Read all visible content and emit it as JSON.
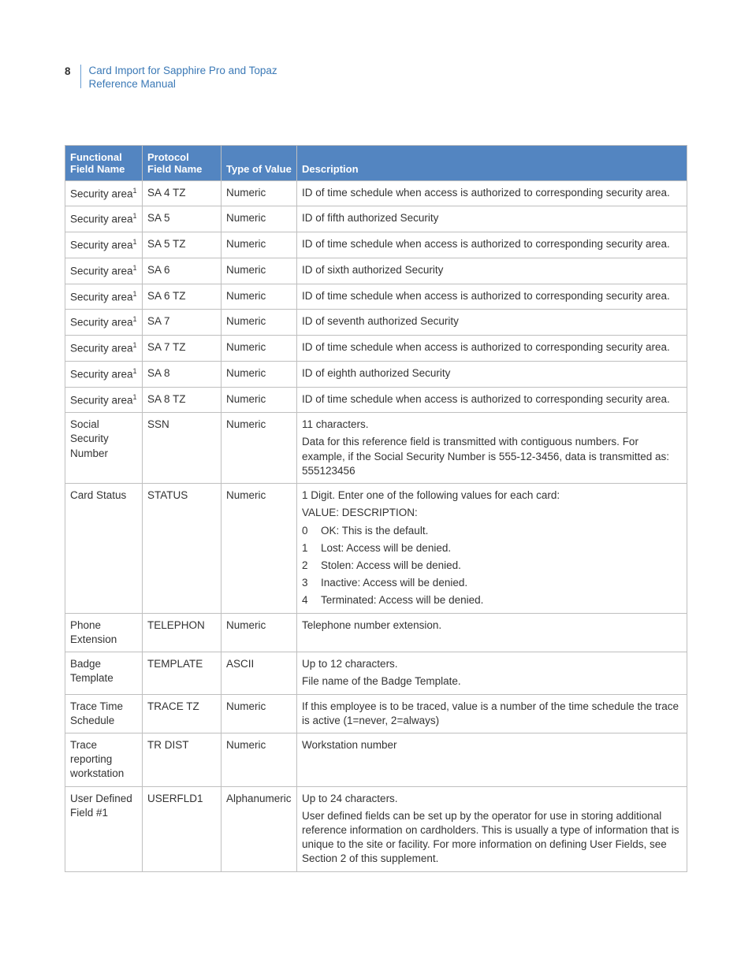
{
  "page": {
    "number": "8",
    "title": "Card Import for Sapphire Pro and Topaz",
    "subtitle": "Reference Manual"
  },
  "colors": {
    "header_bg": "#5385c1",
    "header_text": "#ffffff",
    "border": "#bfbfbf",
    "link_text": "#3b79b6",
    "body_text": "#333333"
  },
  "table": {
    "columns": [
      {
        "label_line1": "Functional",
        "label_line2": "Field Name"
      },
      {
        "label_line1": "Protocol",
        "label_line2": "Field Name"
      },
      {
        "label_line1": "",
        "label_line2": "Type of Value"
      },
      {
        "label_line1": "",
        "label_line2": "Description"
      }
    ],
    "rows": [
      {
        "functional": "Security area",
        "functional_sup": "1",
        "protocol": "SA 4 TZ",
        "type": "Numeric",
        "description": [
          {
            "kind": "p",
            "text": "ID of time schedule when access is authorized to corresponding security area."
          }
        ]
      },
      {
        "functional": "Security area",
        "functional_sup": "1",
        "protocol": "SA 5",
        "type": "Numeric",
        "description": [
          {
            "kind": "p",
            "text": "ID of fifth authorized Security"
          }
        ]
      },
      {
        "functional": "Security area",
        "functional_sup": "1",
        "protocol": "SA 5 TZ",
        "type": "Numeric",
        "description": [
          {
            "kind": "p",
            "text": "ID of time schedule when access is authorized to corresponding security area."
          }
        ]
      },
      {
        "functional": "Security area",
        "functional_sup": "1",
        "protocol": "SA 6",
        "type": "Numeric",
        "description": [
          {
            "kind": "p",
            "text": "ID of sixth authorized Security"
          }
        ]
      },
      {
        "functional": "Security area",
        "functional_sup": "1",
        "protocol": "SA 6 TZ",
        "type": "Numeric",
        "description": [
          {
            "kind": "p",
            "text": "ID of time schedule when access is authorized to corresponding security area."
          }
        ]
      },
      {
        "functional": "Security area",
        "functional_sup": "1",
        "protocol": "SA 7",
        "type": "Numeric",
        "description": [
          {
            "kind": "p",
            "text": "ID of seventh authorized Security"
          }
        ]
      },
      {
        "functional": "Security area",
        "functional_sup": "1",
        "protocol": "SA 7 TZ",
        "type": "Numeric",
        "description": [
          {
            "kind": "p",
            "text": "ID of time schedule when access is authorized to corresponding security area."
          }
        ]
      },
      {
        "functional": "Security area",
        "functional_sup": "1",
        "protocol": "SA 8",
        "type": "Numeric",
        "description": [
          {
            "kind": "p",
            "text": "ID of eighth authorized Security"
          }
        ]
      },
      {
        "functional": "Security area",
        "functional_sup": "1",
        "protocol": "SA 8 TZ",
        "type": "Numeric",
        "description": [
          {
            "kind": "p",
            "text": "ID of time schedule when access is authorized to corresponding security area."
          }
        ]
      },
      {
        "functional": "Social Security Number",
        "functional_sup": "",
        "protocol": "SSN",
        "type": "Numeric",
        "description": [
          {
            "kind": "p",
            "text": "11 characters."
          },
          {
            "kind": "p",
            "text": "Data for this reference field is transmitted with contiguous numbers. For example, if the Social Security Number is 555-12-3456, data is transmitted as: 555123456"
          }
        ]
      },
      {
        "functional": "Card Status",
        "functional_sup": "",
        "protocol": "STATUS",
        "type": "Numeric",
        "description": [
          {
            "kind": "p",
            "text": "1 Digit. Enter one of the following values for each card:"
          },
          {
            "kind": "p",
            "text": "VALUE: DESCRIPTION:"
          },
          {
            "kind": "kv",
            "key": "0",
            "val": "OK: This is the default."
          },
          {
            "kind": "kv",
            "key": "1",
            "val": "Lost: Access will be denied."
          },
          {
            "kind": "kv",
            "key": "2",
            "val": "Stolen: Access will be denied."
          },
          {
            "kind": "kv",
            "key": "3",
            "val": "Inactive: Access will be denied."
          },
          {
            "kind": "kv",
            "key": "4",
            "val": "Terminated: Access will be denied."
          }
        ]
      },
      {
        "functional": "Phone Extension",
        "functional_sup": "",
        "protocol": "TELEPHON",
        "type": "Numeric",
        "description": [
          {
            "kind": "p",
            "text": "Telephone number extension."
          }
        ]
      },
      {
        "functional": "Badge Template",
        "functional_sup": "",
        "protocol": "TEMPLATE",
        "type": "ASCII",
        "description": [
          {
            "kind": "p",
            "text": "Up to 12 characters."
          },
          {
            "kind": "p",
            "text": "File name of the Badge Template."
          }
        ]
      },
      {
        "functional": "Trace Time Schedule",
        "functional_sup": "",
        "protocol": "TRACE TZ",
        "type": "Numeric",
        "description": [
          {
            "kind": "p",
            "text": "If this employee is to be traced, value is a number of the time schedule the trace is active (1=never, 2=always)"
          }
        ]
      },
      {
        "functional": "Trace reporting workstation",
        "functional_sup": "",
        "protocol": "TR DIST",
        "type": "Numeric",
        "description": [
          {
            "kind": "p",
            "text": "Workstation number"
          }
        ]
      },
      {
        "functional": "User Defined Field #1",
        "functional_sup": "",
        "protocol": "USERFLD1",
        "type": "Alphanumeric",
        "description": [
          {
            "kind": "p",
            "text": "Up to 24 characters."
          },
          {
            "kind": "p",
            "text": "User defined fields can be set up by the operator for use in storing additional reference information on cardholders. This is usually a type of information that is unique to the site or facility. For more information on defining User Fields, see Section 2 of this supplement."
          }
        ]
      }
    ]
  }
}
